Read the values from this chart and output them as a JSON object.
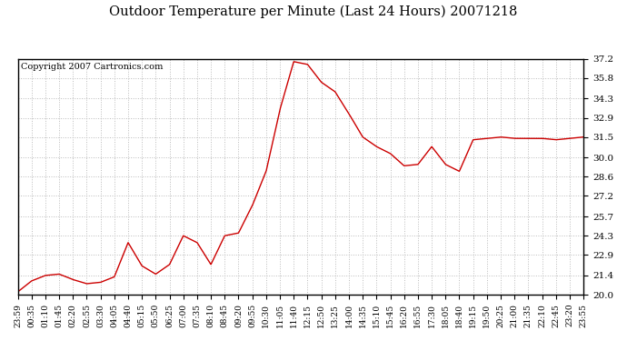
{
  "title": "Outdoor Temperature per Minute (Last 24 Hours) 20071218",
  "copyright": "Copyright 2007 Cartronics.com",
  "line_color": "#cc0000",
  "bg_color": "#ffffff",
  "plot_bg_color": "#ffffff",
  "grid_color": "#bbbbbb",
  "ylim": [
    20.0,
    37.2
  ],
  "yticks": [
    20.0,
    21.4,
    22.9,
    24.3,
    25.7,
    27.2,
    28.6,
    30.0,
    31.5,
    32.9,
    34.3,
    35.8,
    37.2
  ],
  "xtick_labels": [
    "23:59",
    "00:35",
    "01:10",
    "01:45",
    "02:20",
    "02:55",
    "03:30",
    "04:05",
    "04:40",
    "05:15",
    "05:50",
    "06:25",
    "07:00",
    "07:35",
    "08:10",
    "08:45",
    "09:20",
    "09:55",
    "10:30",
    "11:05",
    "11:40",
    "12:15",
    "12:50",
    "13:25",
    "14:00",
    "14:35",
    "15:10",
    "15:45",
    "16:20",
    "16:55",
    "17:30",
    "18:05",
    "18:40",
    "19:15",
    "19:50",
    "20:25",
    "21:00",
    "21:35",
    "22:10",
    "22:45",
    "23:20",
    "23:55"
  ],
  "keypoints_x": [
    0,
    1,
    2,
    3,
    4,
    5,
    6,
    7,
    8,
    9,
    10,
    11,
    12,
    13,
    14,
    15,
    16,
    17,
    18,
    19,
    20,
    21,
    22,
    23,
    24,
    25,
    26,
    27,
    28,
    29,
    30,
    31,
    32,
    33,
    34,
    35,
    36,
    37,
    38,
    39,
    40,
    41
  ],
  "keypoints_y": [
    20.2,
    21.0,
    21.4,
    21.5,
    21.1,
    20.8,
    20.9,
    21.3,
    23.8,
    22.1,
    21.5,
    22.2,
    24.3,
    23.8,
    22.2,
    24.3,
    24.5,
    26.5,
    29.0,
    33.5,
    37.0,
    36.8,
    35.5,
    34.8,
    33.2,
    31.5,
    30.8,
    30.3,
    29.4,
    29.5,
    30.8,
    29.5,
    29.0,
    31.3,
    31.4,
    31.5,
    31.4,
    31.4,
    31.4,
    31.3,
    31.4,
    31.5
  ]
}
